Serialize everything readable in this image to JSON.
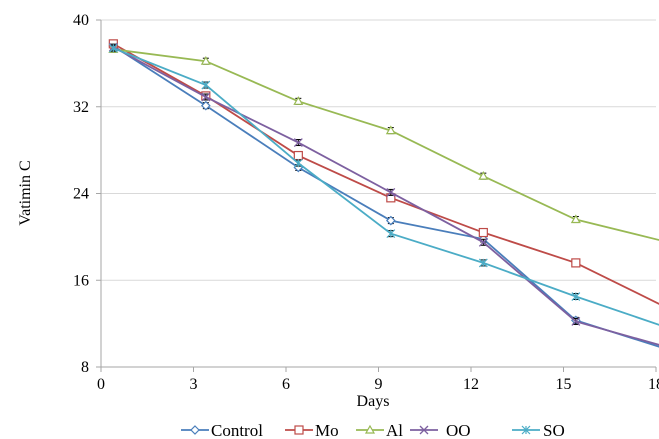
{
  "chart_data": {
    "type": "line",
    "title": "",
    "xlabel": "Days",
    "ylabel": "Vatimin C",
    "xlim": [
      0,
      18
    ],
    "ylim": [
      8,
      40
    ],
    "xticks": [
      0,
      3,
      6,
      9,
      12,
      15,
      18
    ],
    "yticks": [
      8,
      16,
      24,
      32,
      40
    ],
    "grid": "horizontal",
    "legend_position": "bottom",
    "series": [
      {
        "name": "Control",
        "color": "#4a7ebb",
        "marker": "diamond",
        "x": [
          0.4,
          3.4,
          6.4,
          9.4,
          12.4,
          15.4,
          18.4
        ],
        "y": [
          37.6,
          32.1,
          26.4,
          21.5,
          19.8,
          12.3,
          9.6
        ]
      },
      {
        "name": "Mo",
        "color": "#be4b48",
        "marker": "square",
        "x": [
          0.4,
          3.4,
          6.4,
          9.4,
          12.4,
          15.4,
          18.4
        ],
        "y": [
          37.8,
          33.0,
          27.5,
          23.6,
          20.4,
          17.6,
          13.4
        ]
      },
      {
        "name": "Al",
        "color": "#98b954",
        "marker": "triangle",
        "x": [
          0.4,
          3.4,
          6.4,
          9.4,
          12.4,
          15.4,
          18.4
        ],
        "y": [
          37.3,
          36.2,
          32.5,
          29.8,
          25.6,
          21.6,
          19.5
        ]
      },
      {
        "name": "OO",
        "color": "#7d60a0",
        "marker": "x",
        "x": [
          0.4,
          3.4,
          6.4,
          9.4,
          12.4,
          15.4,
          18.4
        ],
        "y": [
          37.5,
          32.9,
          28.7,
          24.1,
          19.5,
          12.2,
          9.8
        ]
      },
      {
        "name": "SO",
        "color": "#4bacc6",
        "marker": "asterisk",
        "x": [
          0.4,
          3.4,
          6.4,
          9.4,
          12.4,
          15.4,
          18.4
        ],
        "y": [
          37.4,
          34.0,
          26.8,
          20.3,
          17.6,
          14.5,
          11.6
        ]
      }
    ]
  }
}
